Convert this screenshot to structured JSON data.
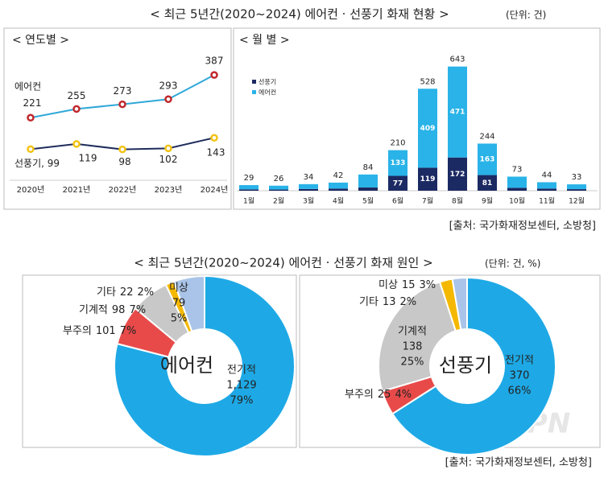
{
  "sections": [
    {
      "title": "< 최근 5년간(2020~2024) 에어컨 · 선풍기 화재 현황 >",
      "unit": "(단위: 건)",
      "source": "[출처: 국가화재정보센터, 소방청]"
    },
    {
      "title": "< 최근 5년간(2020~2024) 에어컨 · 선풍기 화재 원인 >",
      "unit": "(단위: 건, %)",
      "source": "[출처: 국가화재정보센터, 소방청]"
    }
  ],
  "watermark": "FPN",
  "chart_data": [
    {
      "type": "line",
      "title": "< 연도별 >",
      "categories": [
        "2020년",
        "2021년",
        "2022년",
        "2023년",
        "2024년"
      ],
      "ylim": [
        0,
        450
      ],
      "series": [
        {
          "name": "에어컨",
          "color": "#2fa8d8",
          "marker_color": "#c0282d",
          "values": [
            221,
            255,
            273,
            293,
            387
          ]
        },
        {
          "color": "#1f2d5c",
          "marker_color": "#f2c314",
          "values": [
            99,
            119,
            98,
            102,
            143
          ],
          "value_labels": [
            "선풍기, 99",
            "119",
            "98",
            "102",
            "143"
          ]
        }
      ]
    },
    {
      "type": "bar",
      "stacked": true,
      "title": "< 월 별 >",
      "categories": [
        "1월",
        "2월",
        "3월",
        "4월",
        "5월",
        "6월",
        "7월",
        "8월",
        "9월",
        "10월",
        "11월",
        "12월"
      ],
      "ylim": [
        0,
        700
      ],
      "legend": "top-left",
      "series": [
        {
          "name": "선풍기",
          "color": "#1c2a63",
          "values": [
            7,
            6,
            9,
            11,
            17,
            77,
            119,
            172,
            81,
            15,
            11,
            8
          ],
          "value_labels": [
            null,
            null,
            null,
            null,
            null,
            "77",
            "119",
            "172",
            "81",
            null,
            null,
            null
          ]
        },
        {
          "name": "에어컨",
          "color": "#29b3e8",
          "values": [
            22,
            20,
            25,
            31,
            67,
            133,
            409,
            471,
            163,
            58,
            33,
            25
          ],
          "value_labels": [
            null,
            null,
            null,
            null,
            null,
            "133",
            "409",
            "471",
            "163",
            null,
            null,
            null
          ]
        }
      ],
      "totals": [
        29,
        26,
        34,
        42,
        84,
        210,
        528,
        643,
        244,
        73,
        44,
        33
      ]
    },
    {
      "type": "pie",
      "title": "에어컨",
      "categories": [
        "전기적",
        "부주의",
        "기계적",
        "기타",
        "미상"
      ],
      "values": [
        1129,
        101,
        98,
        22,
        79
      ],
      "value_labels": [
        "1,129",
        "101",
        "98",
        "22",
        "79"
      ],
      "percents": [
        79,
        7,
        7,
        2,
        5
      ],
      "percent_labels": [
        "79%",
        "7%",
        "7%",
        "2%",
        "5%"
      ],
      "colors": [
        "#1ea9e6",
        "#e84a4a",
        "#c8c8c8",
        "#f5b800",
        "#a9c4e8"
      ]
    },
    {
      "type": "pie",
      "title": "선풍기",
      "categories": [
        "전기적",
        "부주의",
        "기계적",
        "기타",
        "미상"
      ],
      "values": [
        370,
        25,
        138,
        13,
        15
      ],
      "value_labels": [
        "370",
        "25",
        "138",
        "13",
        "15"
      ],
      "percents": [
        66,
        4,
        25,
        2,
        3
      ],
      "percent_labels": [
        "66%",
        "4%",
        "25%",
        "2%",
        "3%"
      ],
      "colors": [
        "#1ea9e6",
        "#e84a4a",
        "#c8c8c8",
        "#f5b800",
        "#a9c4e8"
      ]
    }
  ]
}
